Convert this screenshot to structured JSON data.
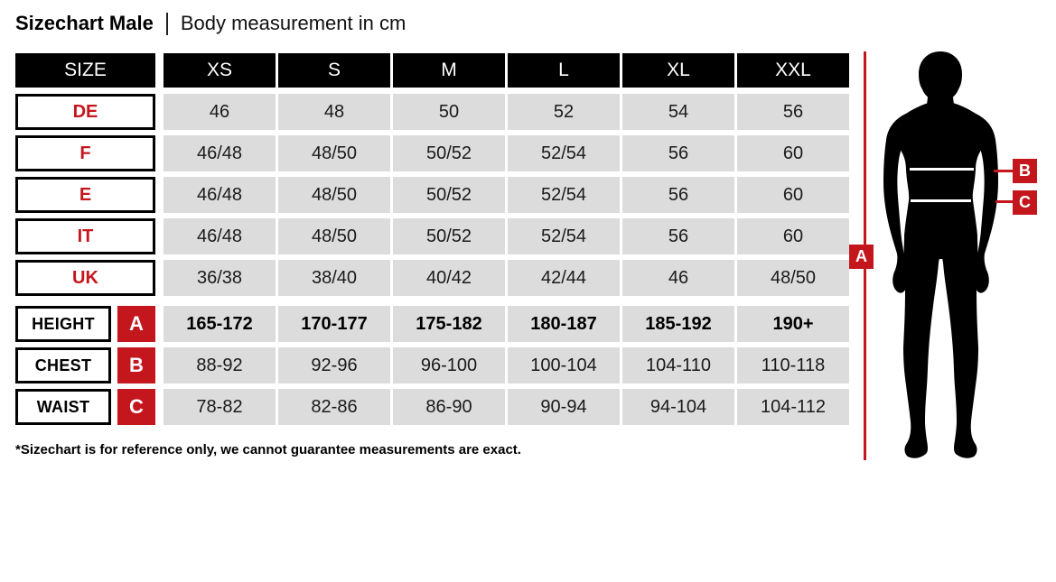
{
  "title": {
    "main": "Sizechart Male",
    "subtitle": "Body measurement in cm"
  },
  "colors": {
    "red": "#C4171D",
    "black": "#000000",
    "cell_gray": "#DCDCDC",
    "cell_text": "#1A1A1A",
    "white": "#FFFFFF"
  },
  "chart_data": {
    "type": "table",
    "title": "Sizechart Male | Body measurement in cm",
    "header": [
      "SIZE",
      "XS",
      "S",
      "M",
      "L",
      "XL",
      "XXL"
    ],
    "rows": [
      {
        "label": "DE",
        "values": [
          "46",
          "48",
          "50",
          "52",
          "54",
          "56"
        ]
      },
      {
        "label": "F",
        "values": [
          "46/48",
          "48/50",
          "50/52",
          "52/54",
          "56",
          "60"
        ]
      },
      {
        "label": "E",
        "values": [
          "46/48",
          "48/50",
          "50/52",
          "52/54",
          "56",
          "60"
        ]
      },
      {
        "label": "IT",
        "values": [
          "46/48",
          "48/50",
          "50/52",
          "52/54",
          "56",
          "60"
        ]
      },
      {
        "label": "UK",
        "values": [
          "36/38",
          "38/40",
          "40/42",
          "42/44",
          "46",
          "48/50"
        ]
      },
      {
        "label": "HEIGHT",
        "badge": "A",
        "bold": true,
        "section_start": true,
        "values": [
          "165-172",
          "170-177",
          "175-182",
          "180-187",
          "185-192",
          "190+"
        ]
      },
      {
        "label": "CHEST",
        "badge": "B",
        "values": [
          "88-92",
          "92-96",
          "96-100",
          "100-104",
          "104-110",
          "110-118"
        ]
      },
      {
        "label": "WAIST",
        "badge": "C",
        "values": [
          "78-82",
          "82-86",
          "86-90",
          "90-94",
          "94-104",
          "104-112"
        ]
      }
    ]
  },
  "footnote": "*Sizechart is for reference only, we cannot guarantee measurements are exact.",
  "figure": {
    "height_label": "A",
    "chest_label": "B",
    "waist_label": "C"
  }
}
